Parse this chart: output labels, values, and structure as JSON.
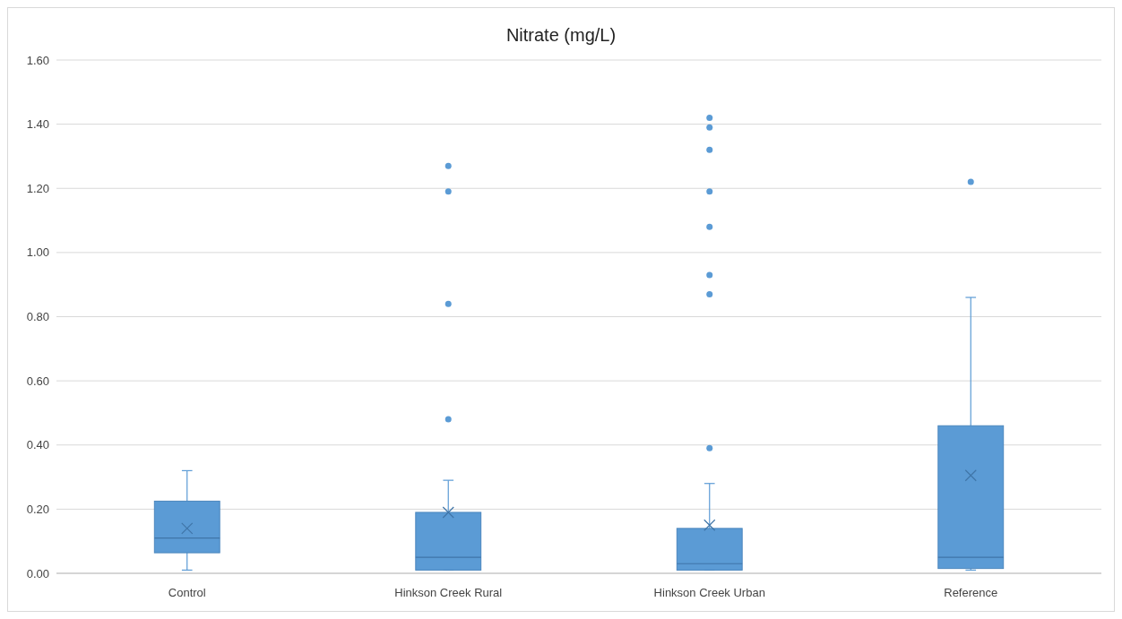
{
  "chart_data": {
    "type": "box",
    "title": "Nitrate (mg/L)",
    "categories": [
      "Control",
      "Hinkson Creek Rural",
      "Hinkson Creek Urban",
      "Reference"
    ],
    "color": "#5b9bd5",
    "boxes": [
      {
        "low": 0.01,
        "q1": 0.064,
        "median": 0.11,
        "q3": 0.225,
        "high": 0.32,
        "mean": 0.14
      },
      {
        "low": 0.01,
        "q1": 0.01,
        "median": 0.05,
        "q3": 0.19,
        "high": 0.29,
        "mean": 0.19,
        "outliers": [
          0.48,
          0.84,
          1.19,
          1.27
        ]
      },
      {
        "low": 0.01,
        "q1": 0.01,
        "median": 0.03,
        "q3": 0.14,
        "high": 0.28,
        "mean": 0.15,
        "outliers": [
          0.39,
          0.87,
          0.93,
          1.08,
          1.19,
          1.32,
          1.39,
          1.42
        ]
      },
      {
        "low": 0.01,
        "q1": 0.015,
        "median": 0.05,
        "q3": 0.46,
        "high": 0.86,
        "mean": 0.305,
        "outliers": [
          1.22
        ]
      }
    ],
    "ylim": [
      0,
      1.6
    ],
    "yticks": [
      {
        "value": 0,
        "label": "0.00"
      },
      {
        "value": 0.2,
        "label": "0.20"
      },
      {
        "value": 0.4,
        "label": "0.40"
      },
      {
        "value": 0.6,
        "label": "0.60"
      },
      {
        "value": 0.8,
        "label": "0.80"
      },
      {
        "value": 1,
        "label": "1.00"
      },
      {
        "value": 1.2,
        "label": "1.20"
      },
      {
        "value": 1.4,
        "label": "1.40"
      },
      {
        "value": 1.6,
        "label": "1.60"
      }
    ],
    "grid": true
  }
}
